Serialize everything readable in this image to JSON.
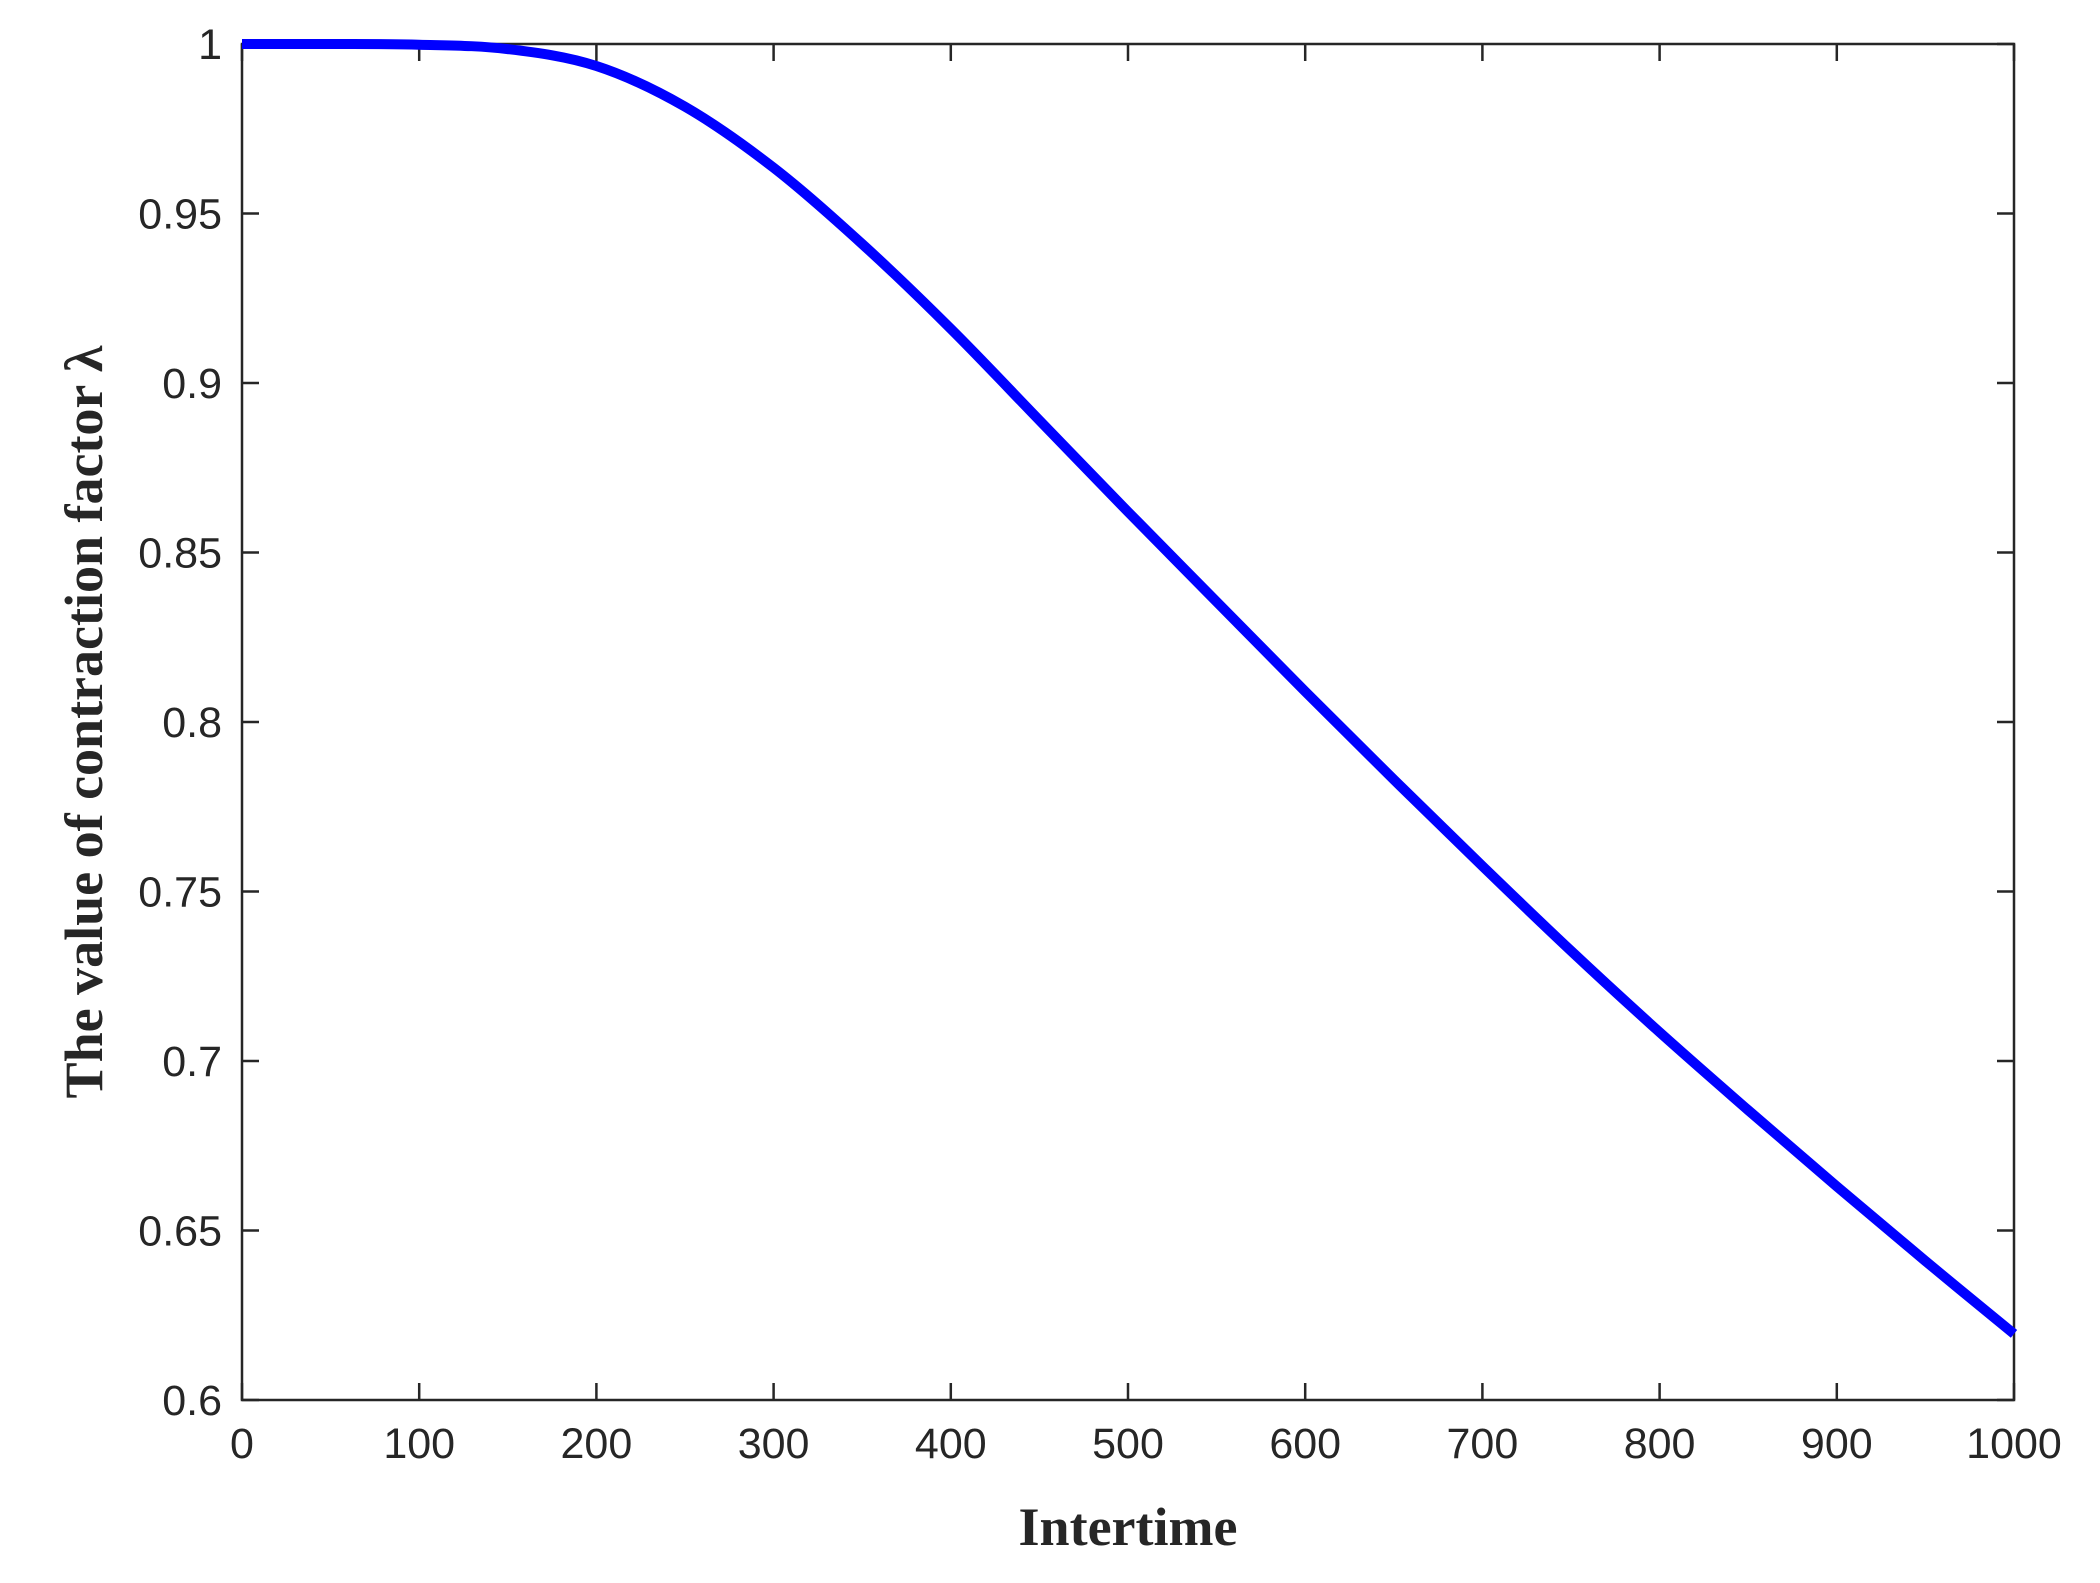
{
  "chart_data": {
    "type": "line",
    "title": "",
    "xlabel": "Intertime",
    "ylabel": "The value of contraction factor λ",
    "xlim": [
      0,
      1000
    ],
    "ylim": [
      0.6,
      1
    ],
    "xticks": [
      0,
      100,
      200,
      300,
      400,
      500,
      600,
      700,
      800,
      900,
      1000
    ],
    "xtick_labels": [
      "0",
      "100",
      "200",
      "300",
      "400",
      "500",
      "600",
      "700",
      "800",
      "900",
      "1000"
    ],
    "yticks": [
      0.6,
      0.65,
      0.7,
      0.75,
      0.8,
      0.85,
      0.9,
      0.95,
      1
    ],
    "ytick_labels": [
      "0.6",
      "0.65",
      "0.7",
      "0.75",
      "0.8",
      "0.85",
      "0.9",
      "0.95",
      "1"
    ],
    "grid": false,
    "legend": "none",
    "colors": {
      "line": "#0000ff",
      "axis": "#262626",
      "background": "#ffffff"
    },
    "series": [
      {
        "x": [
          0,
          50,
          100,
          150,
          200,
          250,
          300,
          350,
          400,
          450,
          500,
          550,
          600,
          650,
          700,
          750,
          800,
          850,
          900,
          950,
          1000
        ],
        "y": [
          1.0,
          1.0,
          0.9998,
          0.9985,
          0.9935,
          0.9815,
          0.9635,
          0.941,
          0.916,
          0.889,
          0.862,
          0.8355,
          0.809,
          0.783,
          0.7575,
          0.7325,
          0.7085,
          0.6855,
          0.663,
          0.641,
          0.6195
        ]
      }
    ]
  }
}
